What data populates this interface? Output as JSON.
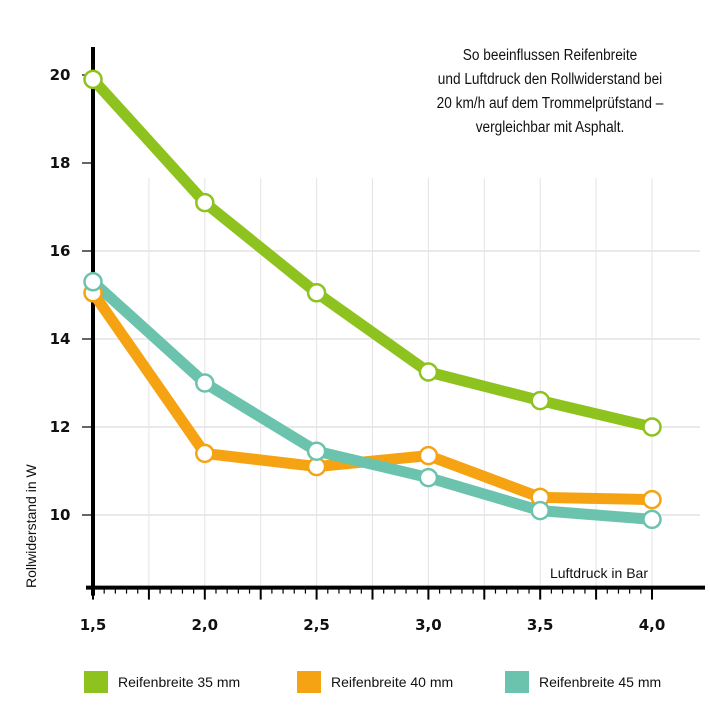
{
  "chart_data": {
    "type": "line",
    "title_lines": [
      "So beeinflussen Reifenbreite",
      "und Luftdruck den Rollwiderstand bei",
      "20 km/h auf dem Trommelprüfstand –",
      "vergleichbar mit Asphalt."
    ],
    "xlabel": "Luftdruck in Bar",
    "ylabel": "Rollwiderstand in W",
    "x": [
      1.5,
      2.0,
      2.5,
      3.0,
      3.5,
      4.0
    ],
    "x_tick_labels": [
      "1,5",
      "2,0",
      "2,5",
      "3,0",
      "3,5",
      "4,0"
    ],
    "y_ticks": [
      10,
      12,
      14,
      16,
      18,
      20
    ],
    "y_tick_labels": [
      "10",
      "12",
      "14",
      "16",
      "18",
      "20"
    ],
    "xlim": [
      1.5,
      4.2
    ],
    "ylim": [
      8.35,
      20.7
    ],
    "grid": true,
    "legend_position": "bottom",
    "series": [
      {
        "name": "Reifenbreite 35 mm",
        "color": "#8dc21f",
        "values": [
          19.9,
          17.1,
          15.05,
          13.25,
          12.6,
          12.0
        ]
      },
      {
        "name": "Reifenbreite 40 mm",
        "color": "#f5a312",
        "values": [
          15.05,
          11.4,
          11.1,
          11.35,
          10.4,
          10.35
        ]
      },
      {
        "name": "Reifenbreite 45 mm",
        "color": "#6cc3ad",
        "values": [
          15.3,
          13.0,
          11.45,
          10.85,
          10.1,
          9.9
        ]
      }
    ]
  }
}
